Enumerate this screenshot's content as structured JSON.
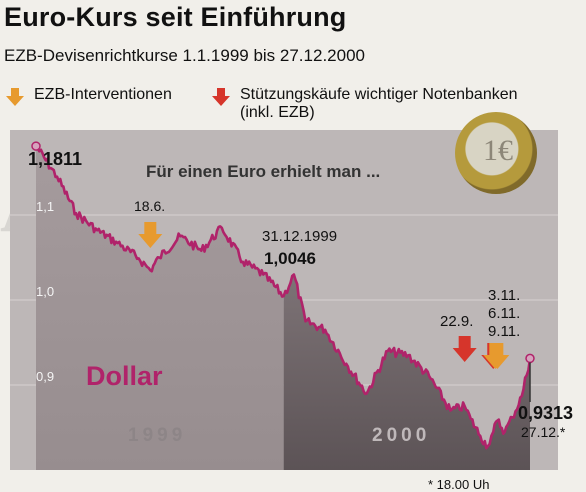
{
  "headline": "Euro-Kurs seit Einführung",
  "subheadline": "EZB-Devisenrichtkurse 1.1.1999 bis 27.12.2000",
  "legend": {
    "ecb_interventions": "EZB-Interventionen",
    "support_buying": "Stützungskäufe wichtiger Notenbanken",
    "support_buying_note": "(inkl. EZB)"
  },
  "colors": {
    "line": "#b0236a",
    "ecb_arrow": "#e79a2e",
    "support_arrow": "#d6352b",
    "plot_bg": "#bdb7b7",
    "area_light": "#a59b9d",
    "area_dark": "#6e6467"
  },
  "chart_data": {
    "type": "line",
    "title": "Für einen Euro erhielt man ...",
    "series_label": "Dollar",
    "year_labels": [
      "1999",
      "2000"
    ],
    "yticks": [
      "0.9",
      "1.0",
      "1.1"
    ],
    "ylim": [
      0.8,
      1.2
    ],
    "x": [
      "1999-01-01",
      "1999-02-01",
      "1999-03-01",
      "1999-04-01",
      "1999-05-01",
      "1999-06-01",
      "1999-06-18",
      "1999-07-01",
      "1999-08-01",
      "1999-09-01",
      "1999-10-01",
      "1999-11-01",
      "1999-12-01",
      "1999-12-31",
      "2000-01-15",
      "2000-02-01",
      "2000-03-01",
      "2000-04-01",
      "2000-05-01",
      "2000-06-01",
      "2000-07-01",
      "2000-08-01",
      "2000-09-01",
      "2000-09-22",
      "2000-10-01",
      "2000-10-15",
      "2000-10-26",
      "2000-11-03",
      "2000-11-09",
      "2000-11-20",
      "2000-12-01",
      "2000-12-15",
      "2000-12-27"
    ],
    "values": [
      1.1811,
      1.145,
      1.102,
      1.082,
      1.067,
      1.049,
      1.035,
      1.05,
      1.075,
      1.058,
      1.085,
      1.045,
      1.03,
      1.0046,
      1.03,
      0.975,
      0.965,
      0.925,
      0.89,
      0.94,
      0.935,
      0.91,
      0.87,
      0.875,
      0.86,
      0.84,
      0.828,
      0.845,
      0.858,
      0.845,
      0.862,
      0.887,
      0.9313
    ],
    "annotations": [
      {
        "text": "1,1811",
        "date": "1999-01-01"
      },
      {
        "text": "18.6.",
        "date": "1999-06-18"
      },
      {
        "text": "31.12.1999",
        "date": "1999-12-31"
      },
      {
        "text": "1,0046",
        "date": "1999-12-31"
      },
      {
        "text": "22.9.",
        "date": "2000-09-22"
      },
      {
        "text": "3.11.",
        "date": "2000-11-03"
      },
      {
        "text": "6.11.",
        "date": "2000-11-06"
      },
      {
        "text": "9.11.",
        "date": "2000-11-09"
      },
      {
        "text": "0,9313",
        "date": "2000-12-27"
      },
      {
        "text": "27.12.*",
        "date": "2000-12-27"
      }
    ]
  },
  "footnote": "* 18.00 Uh"
}
